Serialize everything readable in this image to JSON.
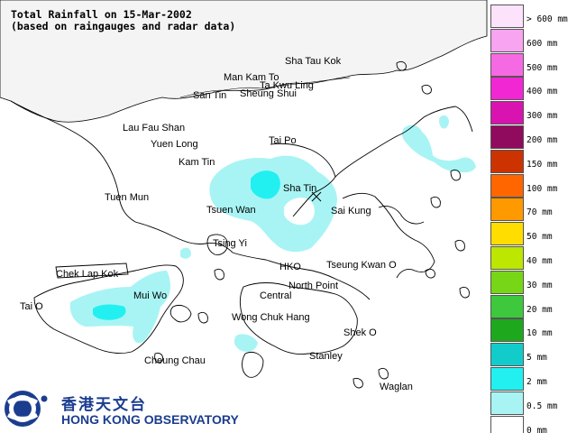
{
  "title": {
    "line1": "Total Rainfall on 15-Mar-2002",
    "line2": "(based on raingauges and radar data)"
  },
  "places": {
    "sha_tau_kok": "Sha Tau Kok",
    "man_kam_to": "Man Kam To",
    "ta_kwu_ling": "Ta Kwu Ling",
    "san_tin": "San Tin",
    "sheung_shui": "Sheung Shui",
    "lau_fau_shan": "Lau Fau Shan",
    "yuen_long": "Yuen Long",
    "tai_po": "Tai Po",
    "kam_tin": "Kam Tin",
    "sha_tin": "Sha Tin",
    "tuen_mun": "Tuen Mun",
    "tsuen_wan": "Tsuen Wan",
    "sai_kung": "Sai Kung",
    "tsing_yi": "Tsing Yi",
    "chek_lap_kok": "Chek Lap Kok",
    "hko": "HKO",
    "tseung_kwan_o": "Tseung Kwan O",
    "mui_wo": "Mui Wo",
    "north_point": "North Point",
    "central": "Central",
    "tai_o": "Tai O",
    "wong_chuk_hang": "Wong Chuk Hang",
    "shek_o": "Shek O",
    "stanley": "Stanley",
    "cheung_chau": "Cheung Chau",
    "waglan": "Waglan"
  },
  "legend": [
    {
      "label": "> 600 mm",
      "color": "#fde2fb"
    },
    {
      "label": "600 mm",
      "color": "#f9a4f0"
    },
    {
      "label": "500 mm",
      "color": "#f56ae2"
    },
    {
      "label": "400 mm",
      "color": "#f227d4"
    },
    {
      "label": "300 mm",
      "color": "#d813b0"
    },
    {
      "label": "200 mm",
      "color": "#900b5e"
    },
    {
      "label": "150 mm",
      "color": "#cc3300"
    },
    {
      "label": "100 mm",
      "color": "#ff6600"
    },
    {
      "label": "70 mm",
      "color": "#ff9900"
    },
    {
      "label": "50 mm",
      "color": "#ffdd00"
    },
    {
      "label": "40 mm",
      "color": "#bde600"
    },
    {
      "label": "30 mm",
      "color": "#77d616"
    },
    {
      "label": "20 mm",
      "color": "#3ec83e"
    },
    {
      "label": "10 mm",
      "color": "#1ea81e"
    },
    {
      "label": "5 mm",
      "color": "#12cccc"
    },
    {
      "label": "2 mm",
      "color": "#22f0f0"
    },
    {
      "label": "0.5 mm",
      "color": "#a8f4f4"
    },
    {
      "label": "0 mm",
      "color": "#ffffff"
    }
  ],
  "logo": {
    "chinese": "香港天文台",
    "english": "HONG KONG OBSERVATORY"
  }
}
